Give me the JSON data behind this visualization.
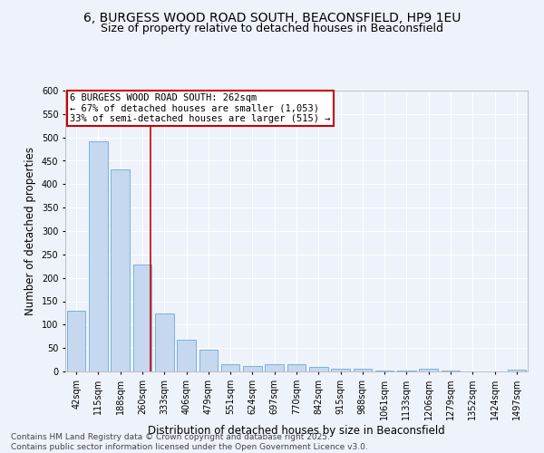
{
  "title_line1": "6, BURGESS WOOD ROAD SOUTH, BEACONSFIELD, HP9 1EU",
  "title_line2": "Size of property relative to detached houses in Beaconsfield",
  "xlabel": "Distribution of detached houses by size in Beaconsfield",
  "ylabel": "Number of detached properties",
  "categories": [
    "42sqm",
    "115sqm",
    "188sqm",
    "260sqm",
    "333sqm",
    "406sqm",
    "479sqm",
    "551sqm",
    "624sqm",
    "697sqm",
    "770sqm",
    "842sqm",
    "915sqm",
    "988sqm",
    "1061sqm",
    "1133sqm",
    "1206sqm",
    "1279sqm",
    "1352sqm",
    "1424sqm",
    "1497sqm"
  ],
  "values": [
    130,
    492,
    432,
    229,
    124,
    68,
    46,
    15,
    12,
    15,
    15,
    9,
    6,
    5,
    1,
    1,
    5,
    1,
    0,
    0,
    3
  ],
  "bar_color": "#c5d8f0",
  "bar_edge_color": "#6aaad4",
  "vline_index": 3,
  "vline_color": "#cc0000",
  "annotation_text": "6 BURGESS WOOD ROAD SOUTH: 262sqm\n← 67% of detached houses are smaller (1,053)\n33% of semi-detached houses are larger (515) →",
  "box_color": "#cc0000",
  "ylim": [
    0,
    600
  ],
  "yticks": [
    0,
    50,
    100,
    150,
    200,
    250,
    300,
    350,
    400,
    450,
    500,
    550,
    600
  ],
  "background_color": "#eef2fa",
  "grid_color": "#ffffff",
  "footer_line1": "Contains HM Land Registry data © Crown copyright and database right 2025.",
  "footer_line2": "Contains public sector information licensed under the Open Government Licence v3.0.",
  "title_fontsize": 10,
  "subtitle_fontsize": 9,
  "axis_label_fontsize": 8.5,
  "tick_fontsize": 7,
  "annotation_fontsize": 7.5,
  "footer_fontsize": 6.5
}
